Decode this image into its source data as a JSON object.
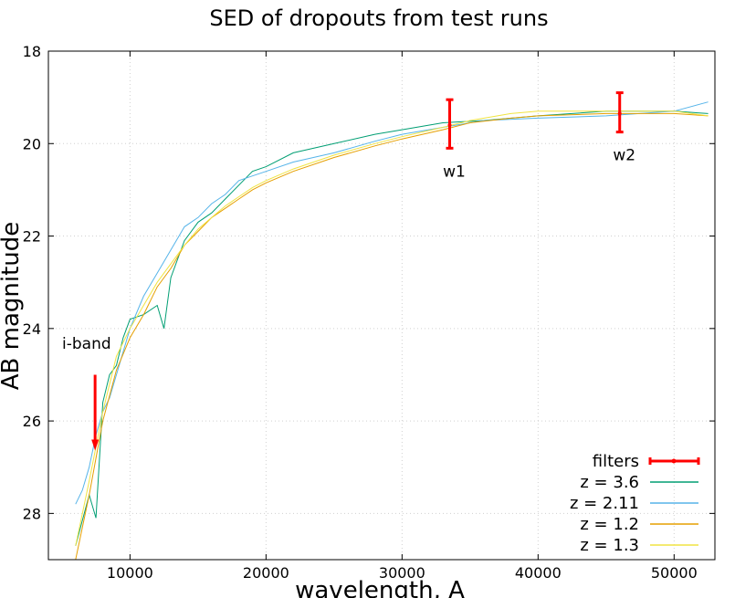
{
  "chart_data": {
    "type": "line",
    "title": "SED of dropouts from test runs",
    "xlabel": "wavelength, A",
    "ylabel": "AB magnitude",
    "xlim": [
      4000,
      53000
    ],
    "ylim": [
      29.0,
      18.0
    ],
    "y_inverted": true,
    "grid": true,
    "legend_placement": "bottom-right",
    "x_ticks": [
      {
        "value": 10000,
        "label": "10000"
      },
      {
        "value": 20000,
        "label": "20000"
      },
      {
        "value": 30000,
        "label": "30000"
      },
      {
        "value": 40000,
        "label": "40000"
      },
      {
        "value": 50000,
        "label": "50000"
      }
    ],
    "y_ticks": [
      {
        "value": 18,
        "label": "18"
      },
      {
        "value": 20,
        "label": "20"
      },
      {
        "value": 22,
        "label": "22"
      },
      {
        "value": 24,
        "label": "24"
      },
      {
        "value": 26,
        "label": "26"
      },
      {
        "value": 28,
        "label": "28"
      }
    ],
    "filters": {
      "name": "filters",
      "color": "#ff0000",
      "points": [
        {
          "label": "w1",
          "x": 33500,
          "y": 19.6,
          "yerr_low": 19.05,
          "yerr_high": 20.1
        },
        {
          "label": "w2",
          "x": 46000,
          "y": 19.35,
          "yerr_low": 18.9,
          "yerr_high": 19.75
        }
      ]
    },
    "annotations": [
      {
        "text": "i-band",
        "x": 7500,
        "y": 25.0,
        "arrow_to_y": 26.6,
        "color": "#ff0000"
      }
    ],
    "series": [
      {
        "name": "z = 3.6",
        "color": "#009e73",
        "x": [
          6000,
          7000,
          7500,
          8000,
          8500,
          9000,
          9500,
          10000,
          11000,
          12000,
          12500,
          13000,
          14000,
          15000,
          16000,
          17000,
          18000,
          19000,
          20000,
          22000,
          25000,
          28000,
          30000,
          33000,
          36000,
          40000,
          45000,
          50000,
          52500
        ],
        "y": [
          28.7,
          27.6,
          28.1,
          25.6,
          25.0,
          24.8,
          24.2,
          23.8,
          23.7,
          23.5,
          24.0,
          22.9,
          22.1,
          21.7,
          21.5,
          21.2,
          20.9,
          20.6,
          20.5,
          20.2,
          20.0,
          19.8,
          19.7,
          19.55,
          19.5,
          19.4,
          19.3,
          19.3,
          19.35
        ]
      },
      {
        "name": "z = 2.11",
        "color": "#56b4e9",
        "x": [
          6000,
          6500,
          7000,
          7500,
          8000,
          8500,
          9000,
          10000,
          11000,
          12000,
          13000,
          14000,
          15000,
          16000,
          17000,
          18000,
          19000,
          20000,
          22000,
          25000,
          28000,
          30000,
          33000,
          36000,
          40000,
          45000,
          50000,
          52500
        ],
        "y": [
          27.8,
          27.5,
          27.0,
          26.3,
          25.8,
          25.5,
          25.0,
          24.0,
          23.3,
          22.8,
          22.3,
          21.8,
          21.6,
          21.3,
          21.1,
          20.8,
          20.7,
          20.6,
          20.4,
          20.2,
          19.95,
          19.8,
          19.65,
          19.5,
          19.45,
          19.4,
          19.3,
          19.1
        ]
      },
      {
        "name": "z = 1.2",
        "color": "#e69f00",
        "x": [
          6000,
          7000,
          8000,
          9000,
          10000,
          11000,
          12000,
          13000,
          14000,
          15000,
          16000,
          17000,
          18000,
          19000,
          20000,
          22000,
          25000,
          28000,
          30000,
          33000,
          35000,
          38000,
          40000,
          45000,
          50000,
          52500
        ],
        "y": [
          29.0,
          27.6,
          26.0,
          24.9,
          24.2,
          23.7,
          23.1,
          22.7,
          22.2,
          21.9,
          21.6,
          21.4,
          21.2,
          21.0,
          20.85,
          20.6,
          20.3,
          20.05,
          19.9,
          19.7,
          19.55,
          19.45,
          19.4,
          19.35,
          19.35,
          19.4
        ]
      },
      {
        "name": "z = 1.3",
        "color": "#f0e442",
        "x": [
          6000,
          7000,
          8000,
          9000,
          10000,
          11000,
          12000,
          13000,
          14000,
          15000,
          16000,
          17000,
          18000,
          19000,
          20000,
          22000,
          25000,
          28000,
          30000,
          33000,
          35000,
          38000,
          40000,
          45000,
          50000,
          52500
        ],
        "y": [
          28.7,
          27.3,
          25.8,
          24.6,
          24.0,
          23.5,
          23.0,
          22.6,
          22.2,
          21.85,
          21.6,
          21.35,
          21.15,
          20.95,
          20.8,
          20.55,
          20.25,
          20.0,
          19.85,
          19.65,
          19.5,
          19.35,
          19.3,
          19.3,
          19.3,
          19.4
        ]
      }
    ]
  }
}
